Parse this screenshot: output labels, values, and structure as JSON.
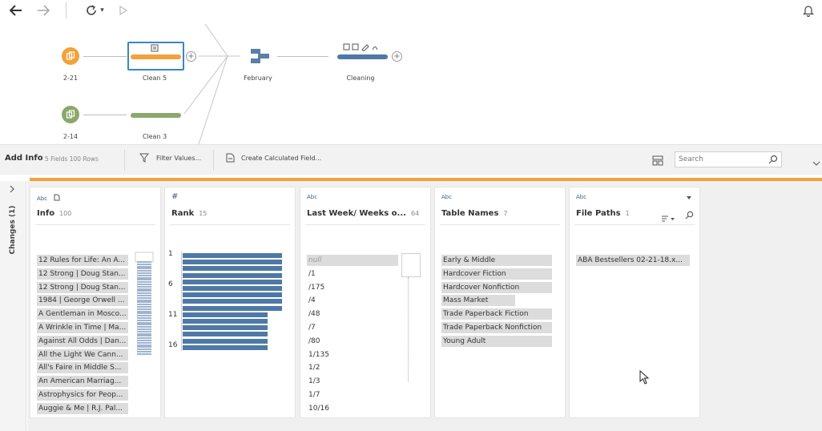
{
  "toolbar": {
    "back_icon": "arrow-left-icon",
    "forward_icon": "arrow-right-icon",
    "refresh_icon": "refresh-icon",
    "caret": "▾",
    "run_icon": "play-icon",
    "bell_icon": "bell-icon"
  },
  "flow": {
    "inputs": [
      {
        "label": "2-21",
        "color": "#f2a23b"
      },
      {
        "label": "2-14",
        "color": "#8aa86b"
      }
    ],
    "steps": [
      {
        "label": "Clean 5",
        "color": "#f2a23b",
        "selected": true
      },
      {
        "label": "Clean 3",
        "color": "#8aa86b",
        "selected": false
      }
    ],
    "union": {
      "label": "February"
    },
    "final": {
      "label": "Cleaning",
      "color": "#4e79a7"
    }
  },
  "profile_bar": {
    "step_name": "Add Info",
    "stats": "5 Fields  100 Rows",
    "filter_label": "Filter Values...",
    "calc_label": "Create Calculated Field...",
    "search_placeholder": "Search"
  },
  "changes_label": "Changes (1)",
  "cards": [
    {
      "type": "Abc",
      "name": "Info",
      "count": "100",
      "values": [
        "12 Rules for Life: An A...",
        "12 Strong | Doug Stan...",
        "12 Strong | Doug Stan...",
        "1984 | George Orwell ...",
        "A Gentleman in Mosco...",
        "A Wrinkle in Time | Ma...",
        "Against All Odds | Dan...",
        "All the Light We Cann...",
        "All's Faire in Middle S...",
        "An American Marriag...",
        "Astrophysics for Peop...",
        "Auggie & Me | R.J. Pal..."
      ]
    },
    {
      "type": "#",
      "name": "Rank",
      "count": "15",
      "tick_labels": [
        "1",
        "6",
        "11",
        "16"
      ]
    },
    {
      "type": "Abc",
      "name": "Last Week/ Weeks o...",
      "count": "64",
      "values": [
        "null",
        "/1",
        "/175",
        "/4",
        "/48",
        "/7",
        "/80",
        "1/135",
        "1/2",
        "1/3",
        "1/7",
        "10/16"
      ]
    },
    {
      "type": "Abc",
      "name": "Table Names",
      "count": "7",
      "values": [
        "Early & Middle",
        "Hardcover Fiction",
        "Hardcover Nonfiction",
        "Mass Market",
        "Trade Paperback Fiction",
        "Trade Paperback Nonfiction",
        "Young Adult"
      ]
    },
    {
      "type": "Abc",
      "name": "File Paths",
      "count": "1",
      "values": [
        "ABA Bestsellers 02-21-18.x..."
      ]
    }
  ]
}
